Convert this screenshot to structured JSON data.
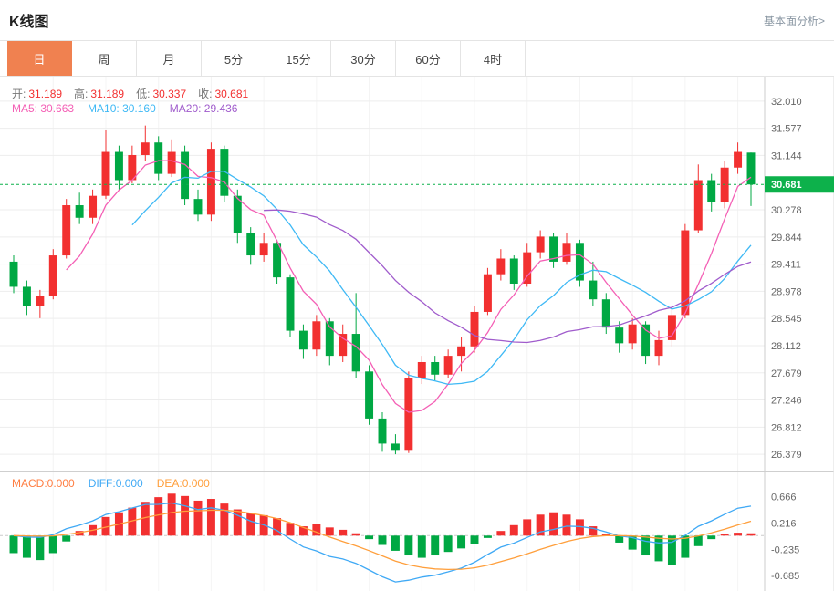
{
  "page": {
    "title": "K线图",
    "link": "基本面分析>"
  },
  "tabs": {
    "items": [
      "日",
      "周",
      "月",
      "5分",
      "15分",
      "30分",
      "60分",
      "4时"
    ],
    "active": "日"
  },
  "quote_bar": {
    "open_label": "开:",
    "open_value": "31.189",
    "high_label": "高:",
    "high_value": "31.189",
    "low_label": "低:",
    "low_value": "30.337",
    "close_label": "收:",
    "close_value": "30.681"
  },
  "ma_bar": {
    "ma5": "MA5: 30.663",
    "ma10": "MA10: 30.160",
    "ma20": "MA20: 29.436"
  },
  "macd_bar": {
    "macd": "MACD:0.000",
    "diff": "DIFF:0.000",
    "dea": "DEA:0.000"
  },
  "colors": {
    "up": "#f23030",
    "down": "#00a843",
    "ma5": "#f45fb5",
    "ma10": "#3fb9f5",
    "ma20": "#a05ccc",
    "diff": "#3fa9f5",
    "dea": "#ff9f3c",
    "macd_text": "#ff7d41",
    "price_tag_bg": "#0db14b",
    "active_tab_bg": "#f08150"
  },
  "chart_data": [
    {
      "type": "candlestick",
      "title": "K线图 日K",
      "legend": [
        "MA5",
        "MA10",
        "MA20"
      ],
      "y_axis_labels": [
        "32.010",
        "31.577",
        "31.144",
        "30.278",
        "29.844",
        "29.411",
        "28.978",
        "28.545",
        "28.112",
        "27.679",
        "27.246",
        "26.812",
        "26.379"
      ],
      "y_range": [
        26.12,
        32.4
      ],
      "current_price": 30.681,
      "current_price_label": "30.681",
      "ma_periods": [
        5,
        10,
        20
      ],
      "ohlc_order": [
        "open",
        "high",
        "low",
        "close"
      ],
      "ohlc": [
        [
          29.45,
          29.55,
          28.95,
          29.05
        ],
        [
          29.05,
          29.15,
          28.6,
          28.75
        ],
        [
          28.75,
          29.0,
          28.55,
          28.9
        ],
        [
          28.9,
          29.65,
          28.85,
          29.55
        ],
        [
          29.55,
          30.45,
          29.5,
          30.35
        ],
        [
          30.35,
          30.55,
          30.05,
          30.15
        ],
        [
          30.15,
          30.6,
          30.05,
          30.5
        ],
        [
          30.5,
          31.55,
          30.45,
          31.2
        ],
        [
          31.2,
          31.3,
          30.6,
          30.75
        ],
        [
          30.75,
          31.3,
          30.7,
          31.15
        ],
        [
          31.15,
          31.62,
          31.05,
          31.35
        ],
        [
          31.35,
          31.45,
          30.75,
          30.85
        ],
        [
          30.85,
          31.4,
          30.8,
          31.2
        ],
        [
          31.2,
          31.3,
          30.35,
          30.45
        ],
        [
          30.45,
          30.6,
          30.1,
          30.2
        ],
        [
          30.2,
          31.35,
          30.1,
          31.25
        ],
        [
          31.25,
          31.3,
          30.4,
          30.5
        ],
        [
          30.5,
          30.6,
          29.75,
          29.9
        ],
        [
          29.9,
          30.0,
          29.4,
          29.55
        ],
        [
          29.55,
          29.9,
          29.45,
          29.75
        ],
        [
          29.75,
          29.8,
          29.1,
          29.2
        ],
        [
          29.2,
          29.25,
          28.25,
          28.35
        ],
        [
          28.35,
          28.45,
          27.9,
          28.05
        ],
        [
          28.05,
          28.6,
          27.95,
          28.5
        ],
        [
          28.5,
          28.55,
          27.8,
          27.95
        ],
        [
          27.95,
          28.45,
          27.85,
          28.3
        ],
        [
          28.3,
          28.95,
          27.6,
          27.7
        ],
        [
          27.7,
          27.8,
          26.85,
          26.95
        ],
        [
          26.95,
          27.05,
          26.42,
          26.55
        ],
        [
          26.55,
          26.7,
          26.38,
          26.45
        ],
        [
          26.45,
          27.7,
          26.4,
          27.6
        ],
        [
          27.6,
          27.95,
          27.5,
          27.85
        ],
        [
          27.85,
          27.95,
          27.55,
          27.65
        ],
        [
          27.65,
          28.05,
          27.6,
          27.95
        ],
        [
          27.95,
          28.25,
          27.7,
          28.1
        ],
        [
          28.1,
          28.75,
          28.0,
          28.65
        ],
        [
          28.65,
          29.35,
          28.6,
          29.25
        ],
        [
          29.25,
          29.65,
          29.15,
          29.5
        ],
        [
          29.5,
          29.55,
          29.0,
          29.1
        ],
        [
          29.1,
          29.75,
          29.05,
          29.6
        ],
        [
          29.6,
          29.95,
          29.5,
          29.85
        ],
        [
          29.85,
          29.9,
          29.35,
          29.45
        ],
        [
          29.45,
          29.9,
          29.4,
          29.75
        ],
        [
          29.75,
          29.8,
          29.05,
          29.15
        ],
        [
          29.15,
          29.45,
          28.75,
          28.85
        ],
        [
          28.85,
          28.95,
          28.3,
          28.4
        ],
        [
          28.4,
          28.5,
          28.0,
          28.15
        ],
        [
          28.15,
          28.55,
          28.05,
          28.45
        ],
        [
          28.45,
          28.5,
          27.82,
          27.95
        ],
        [
          27.95,
          28.35,
          27.8,
          28.2
        ],
        [
          28.2,
          28.7,
          28.1,
          28.6
        ],
        [
          28.6,
          30.05,
          28.55,
          29.95
        ],
        [
          29.95,
          31.0,
          29.9,
          30.75
        ],
        [
          30.75,
          30.85,
          30.25,
          30.4
        ],
        [
          30.4,
          31.05,
          30.3,
          30.95
        ],
        [
          30.95,
          31.35,
          30.85,
          31.2
        ],
        [
          31.189,
          31.189,
          30.337,
          30.681
        ]
      ]
    },
    {
      "type": "bar",
      "title": "MACD",
      "y_axis_labels": [
        "0.666",
        "0.216",
        "-0.235",
        "-0.685"
      ],
      "y_range": [
        -0.95,
        1.1
      ],
      "histogram": [
        -0.3,
        -0.38,
        -0.42,
        -0.3,
        -0.1,
        0.08,
        0.18,
        0.32,
        0.4,
        0.48,
        0.58,
        0.66,
        0.72,
        0.68,
        0.6,
        0.63,
        0.55,
        0.45,
        0.38,
        0.35,
        0.3,
        0.22,
        0.16,
        0.2,
        0.14,
        0.1,
        0.04,
        -0.06,
        -0.16,
        -0.26,
        -0.34,
        -0.38,
        -0.34,
        -0.28,
        -0.22,
        -0.14,
        -0.04,
        0.08,
        0.18,
        0.28,
        0.36,
        0.4,
        0.36,
        0.28,
        0.16,
        0.02,
        -0.12,
        -0.24,
        -0.34,
        -0.44,
        -0.5,
        -0.38,
        -0.18,
        -0.06,
        0.02,
        0.05,
        0.04
      ]
    }
  ]
}
